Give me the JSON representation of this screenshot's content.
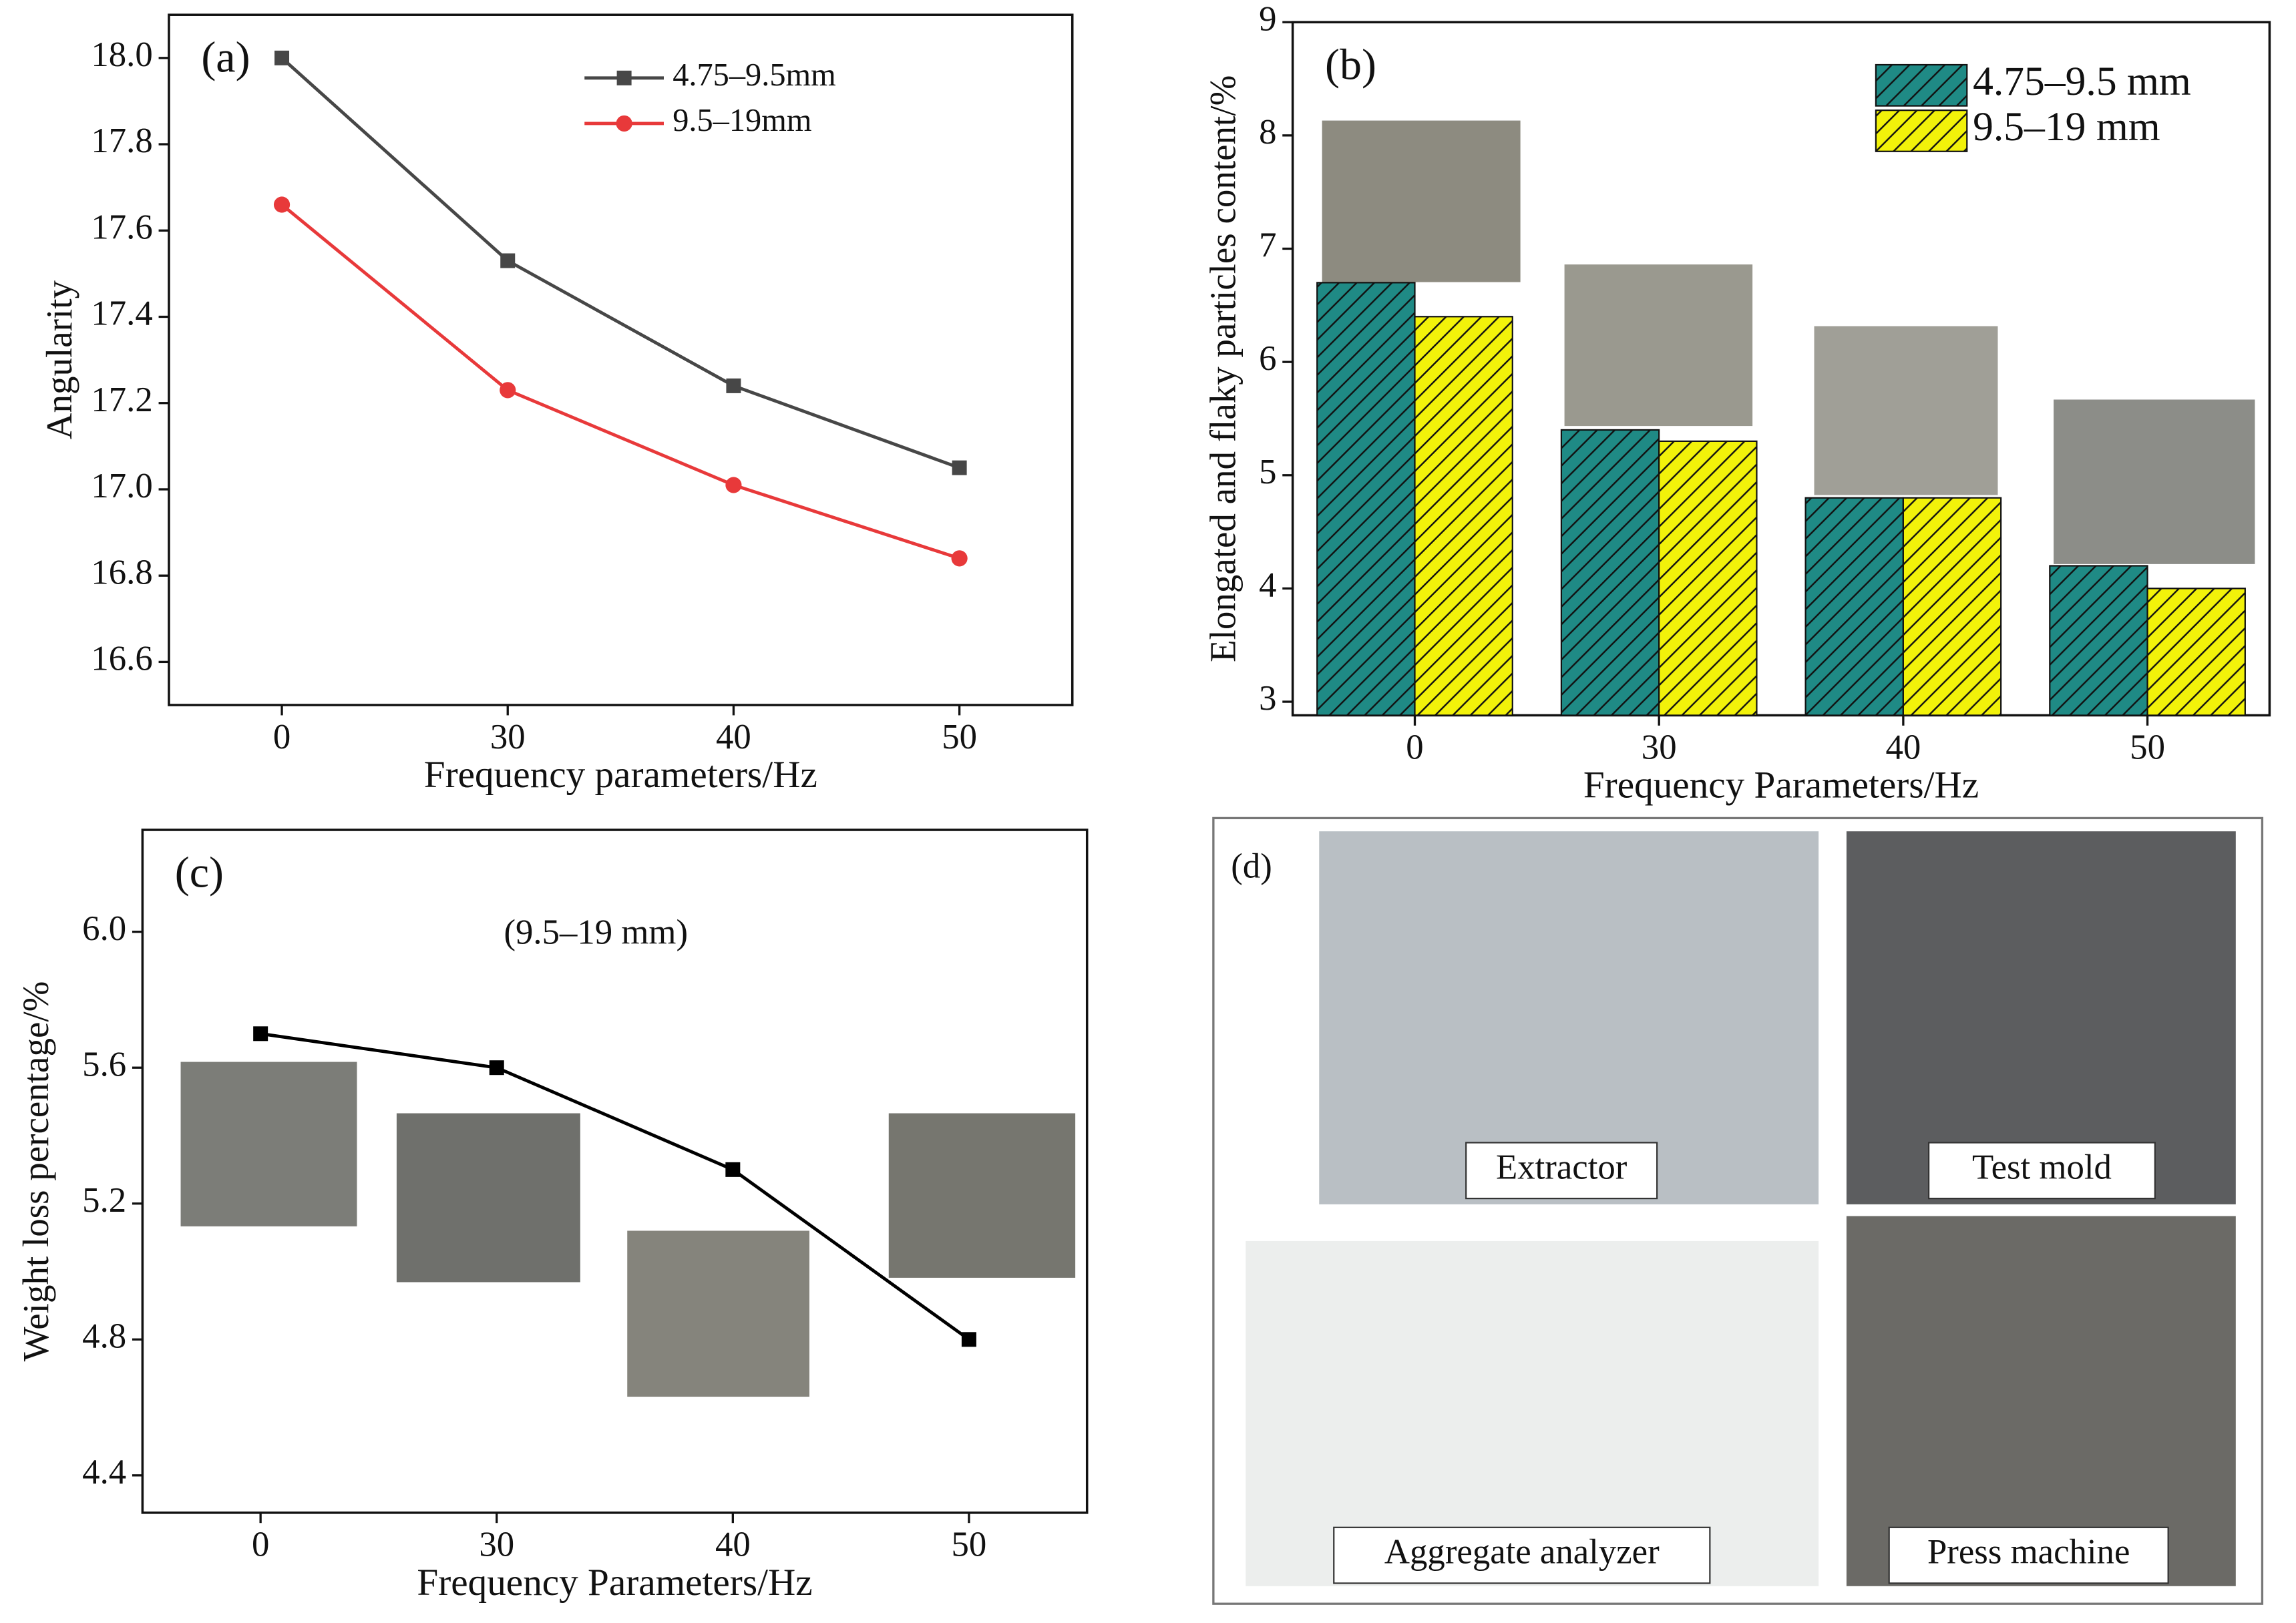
{
  "chart_data": [
    {
      "type": "line",
      "panel_label": "(a)",
      "x_label": "Frequency parameters/Hz",
      "y_label": "Angularity",
      "categories": [
        "0",
        "30",
        "40",
        "50"
      ],
      "series": [
        {
          "name": "4.75–9.5mm",
          "color": "#474747",
          "marker": "square",
          "values": [
            18.0,
            17.53,
            17.24,
            17.05
          ]
        },
        {
          "name": "9.5–19mm",
          "color": "#e8393a",
          "marker": "circle",
          "values": [
            17.66,
            17.23,
            17.01,
            16.84
          ]
        }
      ],
      "ylim": [
        16.5,
        18.1
      ],
      "yticks": [
        16.6,
        16.8,
        {
          "value": 17,
          "label": "17.0"
        },
        17.2,
        17.4,
        17.6,
        17.8,
        {
          "value": 18,
          "label": "18.0"
        }
      ],
      "legend": "upper center"
    },
    {
      "type": "bar",
      "panel_label": "(b)",
      "x_label": "Frequency Parameters/Hz",
      "y_label": "Elongated and flaky particles content/%",
      "categories": [
        "0",
        "30",
        "40",
        "50"
      ],
      "series": [
        {
          "name": "4.75–9.5 mm",
          "color": "#1f8a85",
          "values": [
            6.7,
            5.4,
            4.8,
            4.2
          ]
        },
        {
          "name": "9.5–19 mm",
          "color": "#f2f20a",
          "values": [
            6.4,
            5.3,
            4.8,
            4.0
          ]
        }
      ],
      "ylim": [
        2.88,
        9
      ],
      "yticks": [
        3,
        4,
        5,
        6,
        7,
        8,
        9
      ],
      "hatch": true,
      "legend": "upper right"
    },
    {
      "type": "line",
      "panel_label": "(c)",
      "annotation": "(9.5–19 mm)",
      "x_label": "Frequency Parameters/Hz",
      "y_label": "Weight loss percentage/%",
      "categories": [
        "0",
        "30",
        "40",
        "50"
      ],
      "series": [
        {
          "color": "#000000",
          "marker": "square",
          "values": [
            5.7,
            5.6,
            5.3,
            4.8
          ]
        }
      ],
      "ylim": [
        4.29,
        6.3
      ],
      "yticks": [
        4.4,
        4.8,
        5.2,
        5.6,
        {
          "value": 6,
          "label": "6.0"
        }
      ]
    }
  ],
  "panel_d": {
    "label": "(d)",
    "captions": [
      "Extractor",
      "Test mold",
      "Aggregate analyzer",
      "Press machine"
    ]
  }
}
